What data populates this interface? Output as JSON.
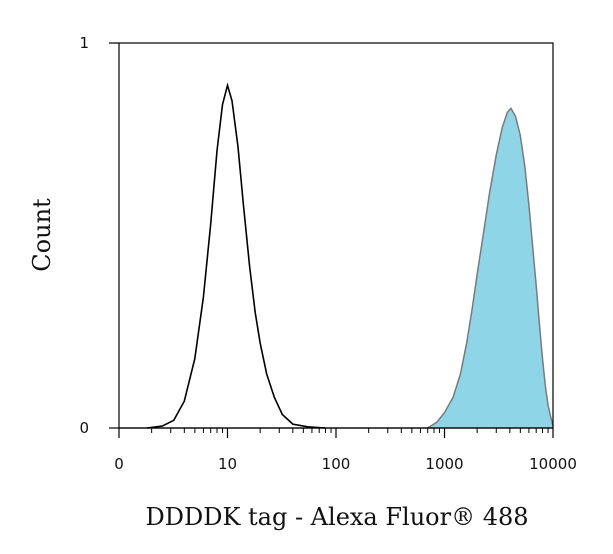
{
  "chart_data": {
    "type": "area",
    "title": "",
    "xlabel": "DDDDK tag - Alexa Fluor® 488",
    "ylabel": "Count",
    "x_scale": "log",
    "xlim": [
      1,
      10000
    ],
    "ylim": [
      0,
      1
    ],
    "x_ticks": [
      {
        "value": 1,
        "label": "0"
      },
      {
        "value": 10,
        "label": "10"
      },
      {
        "value": 100,
        "label": "100"
      },
      {
        "value": 1000,
        "label": "1000"
      },
      {
        "value": 10000,
        "label": "10000"
      }
    ],
    "y_ticks": [
      {
        "value": 0,
        "label": "0"
      },
      {
        "value": 1,
        "label": "1"
      }
    ],
    "grid": false,
    "legend": "none",
    "series": [
      {
        "style": "outline",
        "color": "#000000",
        "points": [
          [
            1.8,
            0.0
          ],
          [
            2.5,
            0.005
          ],
          [
            3.2,
            0.02
          ],
          [
            4.0,
            0.07
          ],
          [
            5.0,
            0.18
          ],
          [
            6.0,
            0.34
          ],
          [
            7.0,
            0.53
          ],
          [
            8.0,
            0.72
          ],
          [
            9.0,
            0.84
          ],
          [
            10.0,
            0.89
          ],
          [
            11.0,
            0.85
          ],
          [
            12.5,
            0.73
          ],
          [
            14.0,
            0.58
          ],
          [
            16.0,
            0.42
          ],
          [
            18.0,
            0.3
          ],
          [
            20.0,
            0.22
          ],
          [
            23.0,
            0.14
          ],
          [
            27.0,
            0.08
          ],
          [
            32.0,
            0.035
          ],
          [
            40.0,
            0.01
          ],
          [
            55.0,
            0.003
          ],
          [
            80.0,
            0.0
          ]
        ]
      },
      {
        "style": "filled",
        "color": "#8fd5e8",
        "edge_color": "#7a7a7a",
        "points": [
          [
            700,
            0.0
          ],
          [
            850,
            0.015
          ],
          [
            1000,
            0.04
          ],
          [
            1200,
            0.08
          ],
          [
            1400,
            0.14
          ],
          [
            1600,
            0.22
          ],
          [
            1800,
            0.31
          ],
          [
            2000,
            0.4
          ],
          [
            2300,
            0.51
          ],
          [
            2600,
            0.61
          ],
          [
            3000,
            0.71
          ],
          [
            3400,
            0.78
          ],
          [
            3800,
            0.82
          ],
          [
            4100,
            0.83
          ],
          [
            4500,
            0.81
          ],
          [
            5000,
            0.76
          ],
          [
            5500,
            0.68
          ],
          [
            6000,
            0.58
          ],
          [
            6500,
            0.47
          ],
          [
            7000,
            0.37
          ],
          [
            7500,
            0.27
          ],
          [
            8000,
            0.18
          ],
          [
            8500,
            0.11
          ],
          [
            9000,
            0.06
          ],
          [
            9500,
            0.03
          ],
          [
            10000,
            0.005
          ]
        ]
      }
    ]
  }
}
